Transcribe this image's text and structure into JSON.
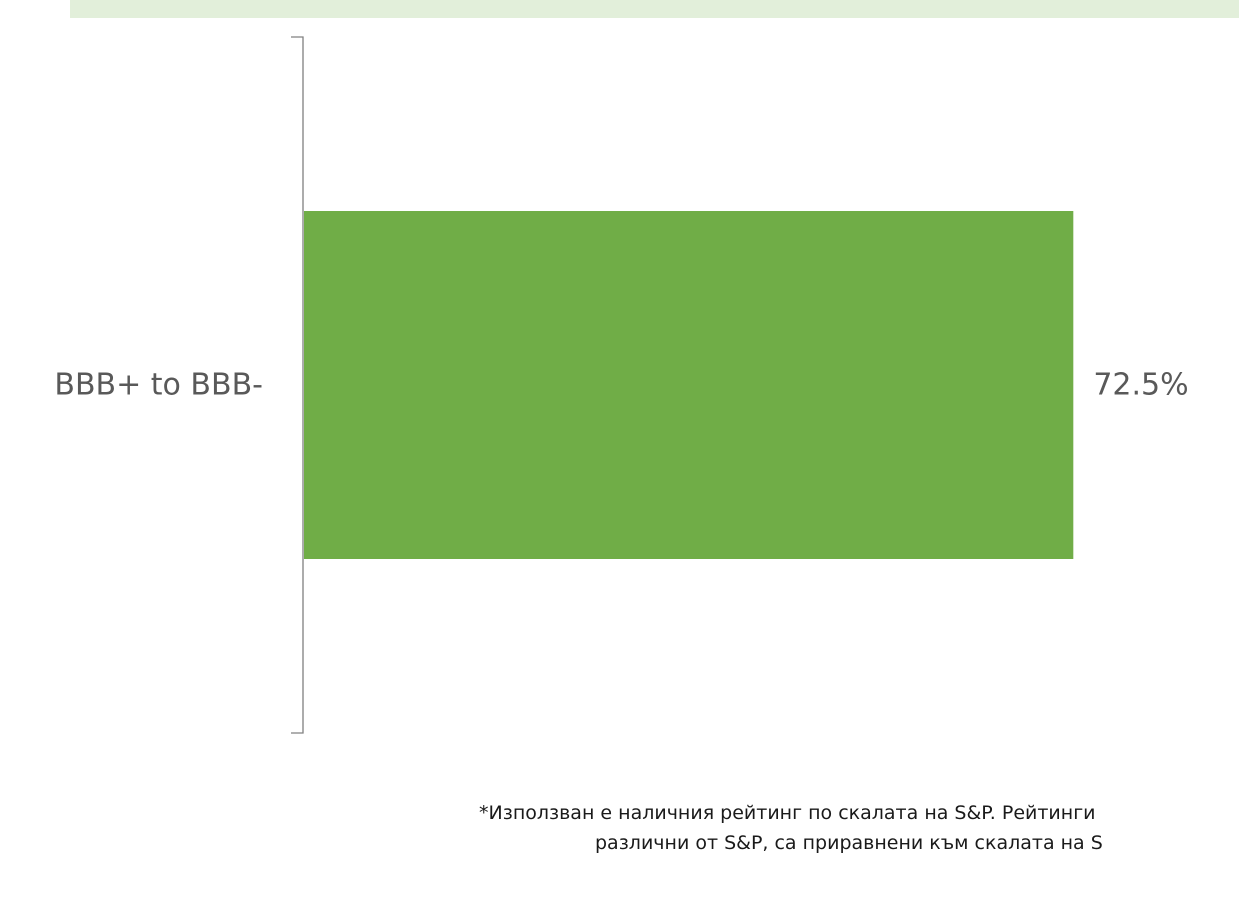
{
  "chart_data": {
    "type": "bar",
    "orientation": "horizontal",
    "categories": [
      "BBB+ to BBB-"
    ],
    "values": [
      72.5
    ],
    "value_labels": [
      "72.5%"
    ],
    "xlim": [
      0,
      80
    ],
    "bar_color": "#70ad47",
    "axis_color": "#808080",
    "label_color": "#595959",
    "grid": false,
    "legend": "none"
  },
  "header": {
    "band_color": "#e2efda"
  },
  "footnote": {
    "line1": "*Използван е наличния рейтинг по скалата на S&P. Рейтинги",
    "line2": "различни от S&P, са приравнени към скалата на S"
  }
}
